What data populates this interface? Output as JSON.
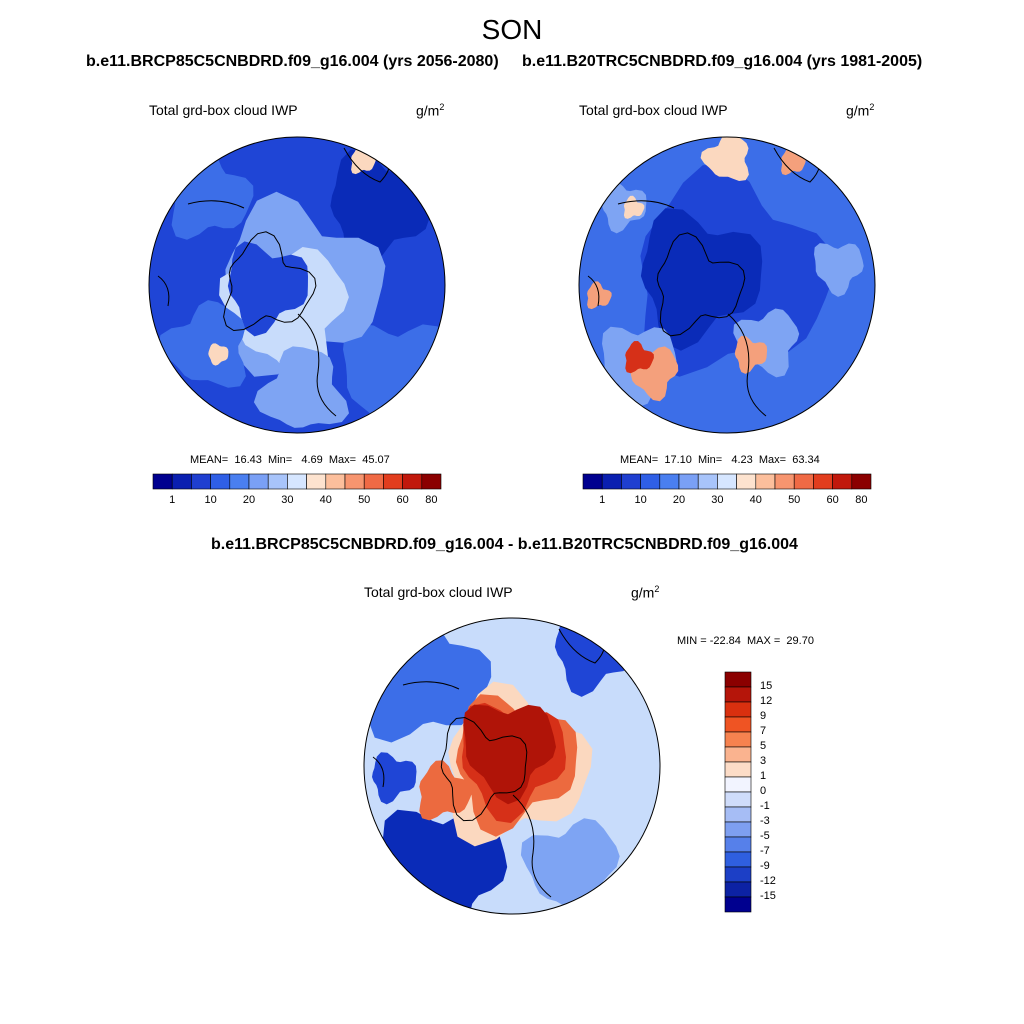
{
  "figure": {
    "season": "SON",
    "subtitles": {
      "left": "b.e11.BRCP85C5CNBDRD.f09_g16.004 (yrs 2056-2080)",
      "right": "b.e11.B20TRC5CNBDRD.f09_g16.004 (yrs 1981-2005)",
      "diff": "b.e11.BRCP85C5CNBDRD.f09_g16.004 - b.e11.B20TRC5CNBDRD.f09_g16.004"
    }
  },
  "panels": [
    {
      "variable": "Total grd-box cloud IWP",
      "units_base": "g/m",
      "units_exp": "2",
      "mean_label": "MEAN=",
      "mean": "16.43",
      "min_label": "Min=",
      "min": "4.69",
      "max_label": "Max=",
      "max": "45.07"
    },
    {
      "variable": "Total grd-box cloud IWP",
      "units_base": "g/m",
      "units_exp": "2",
      "mean_label": "MEAN=",
      "mean": "17.10",
      "min_label": "Min=",
      "min": "4.23",
      "max_label": "Max=",
      "max": "63.34"
    },
    {
      "variable": "Total grd-box cloud IWP",
      "units_base": "g/m",
      "units_exp": "2",
      "minmax_text": "MIN = -22.84  MAX =  29.70"
    }
  ],
  "colorbar_abs": {
    "colors": [
      "#00008f",
      "#0a1fb0",
      "#1f3fd0",
      "#2f5fe6",
      "#4a7ff0",
      "#7aa0f5",
      "#a8c4fa",
      "#d6e6ff",
      "#fde3cf",
      "#fcbf9c",
      "#f7956f",
      "#f06a45",
      "#e23d1e",
      "#c1180c",
      "#8b0000"
    ],
    "labels": [
      "1",
      "10",
      "20",
      "30",
      "40",
      "50",
      "60",
      "80"
    ]
  },
  "colorbar_diff": {
    "colors": [
      "#8b0000",
      "#b5150a",
      "#d9300f",
      "#ef5423",
      "#f6824f",
      "#fab38f",
      "#fcdcc7",
      "#f2f4ff",
      "#cfdcfa",
      "#a6bdf5",
      "#7e9ff0",
      "#5680ea",
      "#2f5fe0",
      "#1c3fc6",
      "#0c22a4",
      "#00008f"
    ],
    "labels": [
      "15",
      "12",
      "9",
      "7",
      "5",
      "3",
      "1",
      "0",
      "-1",
      "-3",
      "-5",
      "-7",
      "-9",
      "-12",
      "-15"
    ]
  },
  "map_palette": {
    "deep": "#0a2bb8",
    "dark": "#1f45d6",
    "mid": "#3c6ee8",
    "light": "#7ea4f3",
    "pale": "#c8dcfb",
    "white": "#eef3ff",
    "peach": "#fbd8bf",
    "salmon": "#f4a07c",
    "orange": "#ec6a3f",
    "red": "#d63018",
    "darkred": "#b01408",
    "coast": "#000000"
  }
}
